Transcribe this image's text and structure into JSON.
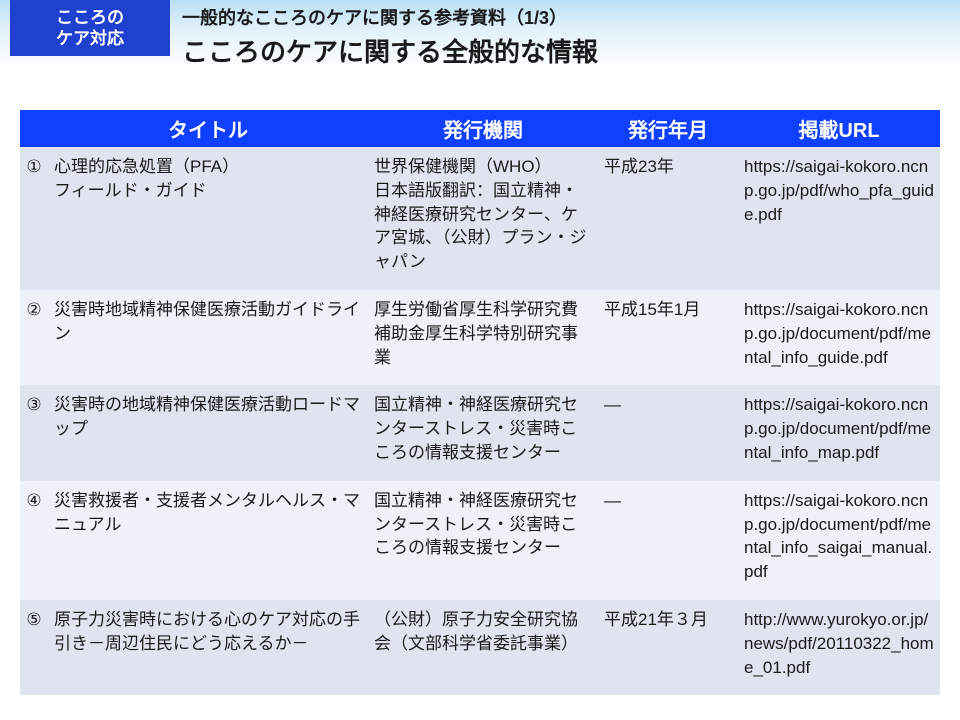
{
  "header": {
    "category_line1": "こころの",
    "category_line2": "ケア対応",
    "super_title": "一般的なこころのケアに関する参考資料（1/3）",
    "main_title": "こころのケアに関する全般的な情報"
  },
  "table": {
    "columns": {
      "num": "",
      "title": "タイトル",
      "org": "発行機関",
      "date": "発行年月",
      "url": "掲載URL"
    },
    "rows": [
      {
        "num": "①",
        "title": "心理的応急処置（PFA）\nフィールド・ガイド",
        "org": "世界保健機関（WHO）\n日本語版翻訳：国立精神・神経医療研究センター、ケア宮城、（公財）プラン・ジャパン",
        "date": "平成23年",
        "url": "https://saigai-kokoro.ncnp.go.jp/pdf/who_pfa_guide.pdf"
      },
      {
        "num": "②",
        "title": "災害時地域精神保健医療活動ガイドライン",
        "org": "厚生労働省厚生科学研究費補助金厚生科学特別研究事業",
        "date": "平成15年1月",
        "url": "https://saigai-kokoro.ncnp.go.jp/document/pdf/mental_info_guide.pdf"
      },
      {
        "num": "③",
        "title": "災害時の地域精神保健医療活動ロードマップ",
        "org": "国立精神・神経医療研究センターストレス・災害時こころの情報支援センター",
        "date": "―",
        "url": "https://saigai-kokoro.ncnp.go.jp/document/pdf/mental_info_map.pdf"
      },
      {
        "num": "④",
        "title": "災害救援者・支援者メンタルヘルス・マニュアル",
        "org": "国立精神・神経医療研究センターストレス・災害時こころの情報支援センター",
        "date": "―",
        "url": "https://saigai-kokoro.ncnp.go.jp/document/pdf/mental_info_saigai_manual.pdf"
      },
      {
        "num": "⑤",
        "title": "原子力災害時における心のケア対応の手引き－周辺住民にどう応えるか－",
        "org": "（公財）原子力安全研究協会（文部科学省委託事業）",
        "date": "平成21年３月",
        "url": "http://www.yurokyo.or.jp/news/pdf/20110322_home_01.pdf"
      }
    ]
  }
}
